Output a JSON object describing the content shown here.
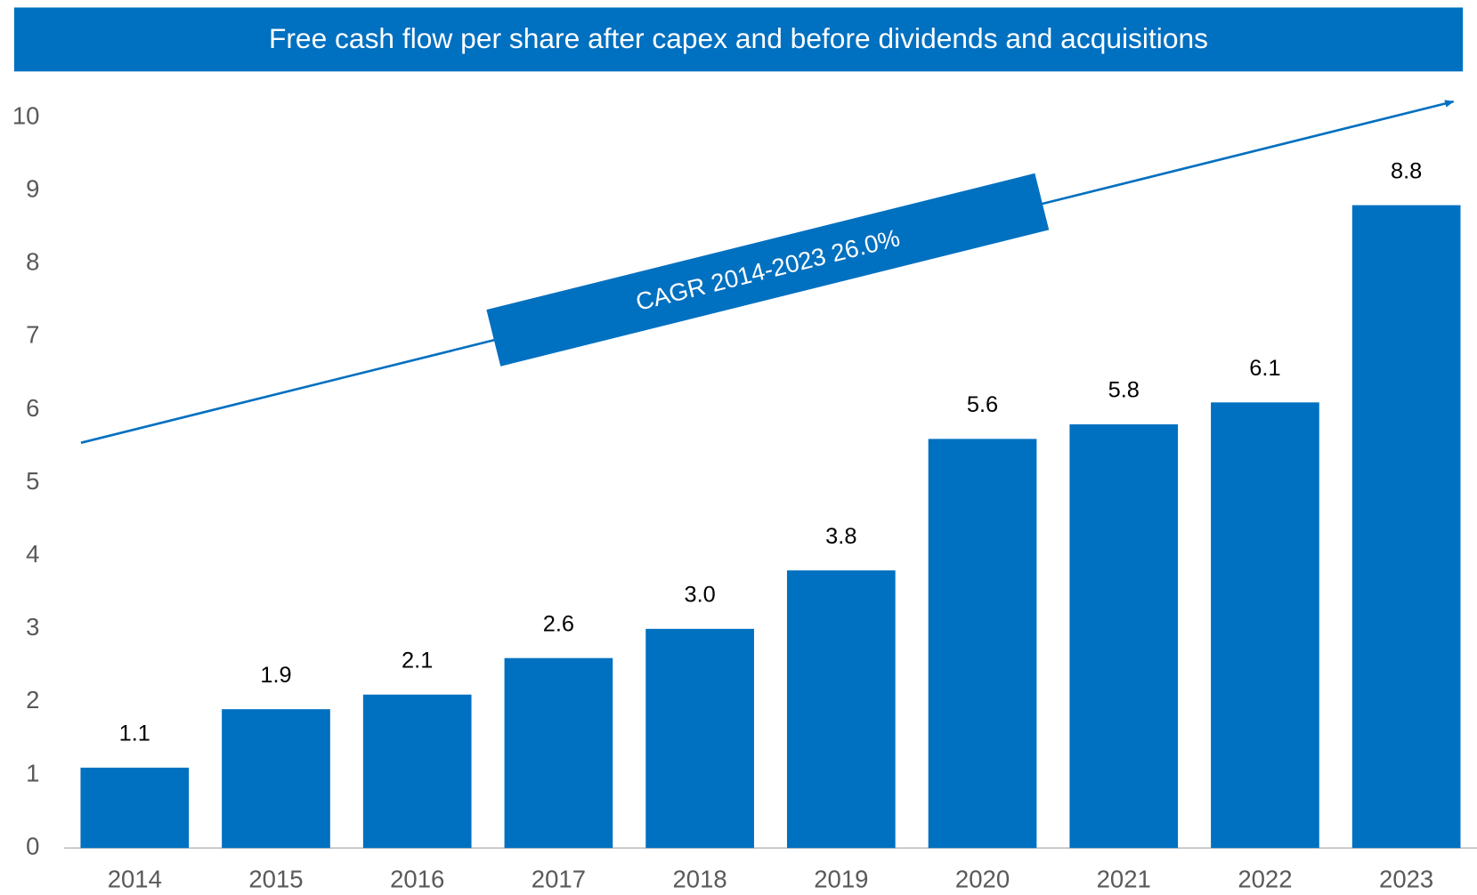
{
  "chart_data": {
    "type": "bar",
    "title": "Free cash flow per share after capex and before dividends and acquisitions",
    "annotation": "CAGR 2014-2023 26.0%",
    "categories": [
      "2014",
      "2015",
      "2016",
      "2017",
      "2018",
      "2019",
      "2020",
      "2021",
      "2022",
      "2023"
    ],
    "values": [
      1.1,
      1.9,
      2.1,
      2.6,
      3.0,
      3.8,
      5.6,
      5.8,
      6.1,
      8.8
    ],
    "value_labels": [
      "1.1",
      "1.9",
      "2.1",
      "2.6",
      "3.0",
      "3.8",
      "5.6",
      "5.8",
      "6.1",
      "8.8"
    ],
    "color": "#0070c0",
    "ylim": [
      0,
      10
    ],
    "yticks": [
      0,
      1,
      2,
      3,
      4,
      5,
      6,
      7,
      8,
      9,
      10
    ],
    "grid": false
  }
}
